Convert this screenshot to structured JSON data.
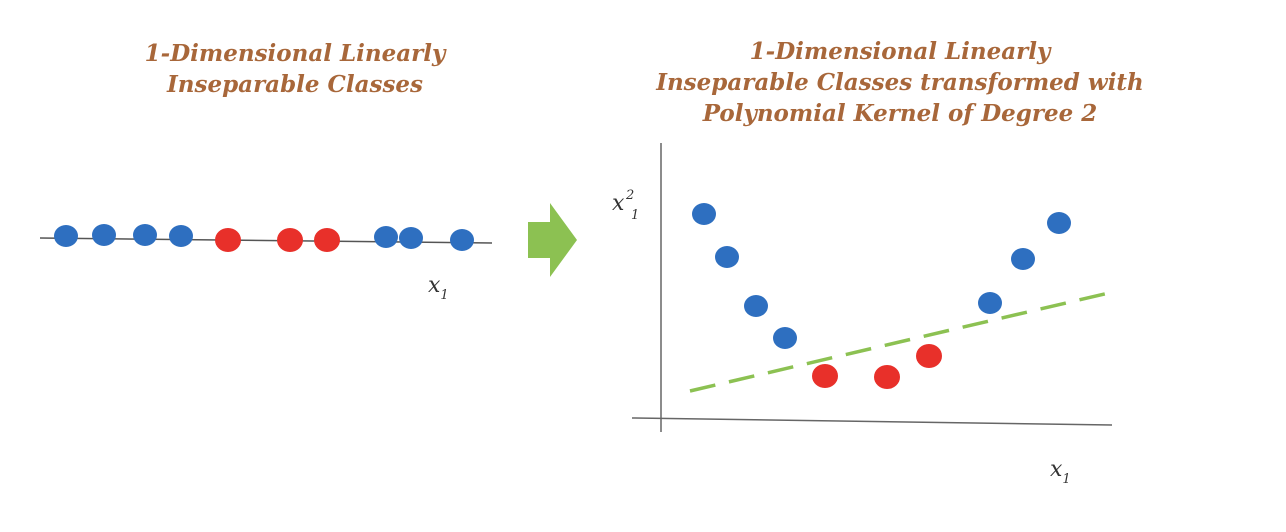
{
  "left_panel": {
    "title_lines": [
      "1-Dimensional Linearly",
      "Inseparable Classes"
    ],
    "axis_label": "x",
    "axis_subscript": "1"
  },
  "right_panel": {
    "title_lines": [
      "1-Dimensional Linearly",
      "Inseparable Classes transformed with",
      "Polynomial Kernel of Degree 2"
    ],
    "x_axis_label": "x",
    "x_axis_subscript": "1",
    "y_axis_label": "x",
    "y_axis_superscript": "2",
    "y_axis_subscript": "1"
  },
  "colors": {
    "title": "#a8673a",
    "class_blue": "#2e6fc0",
    "class_red": "#e8302a",
    "arrow": "#8cc152",
    "separator": "#8cc152",
    "axis": "#555555"
  },
  "icons": {
    "arrow": "right-arrow-icon"
  }
}
